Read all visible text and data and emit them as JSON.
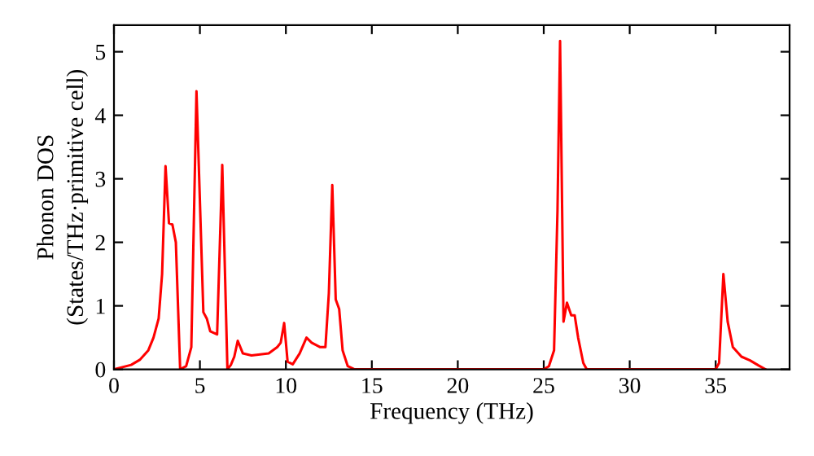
{
  "chart_data": {
    "type": "line",
    "xlabel": "Frequency (THz)",
    "ylabel": "Phonon DOS\n(States/THz·primitive cell)",
    "xlim": [
      0,
      39.3
    ],
    "ylim": [
      0,
      5.42
    ],
    "xticks": [
      0,
      5,
      10,
      15,
      20,
      25,
      30,
      35
    ],
    "yticks": [
      0,
      1,
      2,
      3,
      4,
      5
    ],
    "grid": false,
    "legend": false,
    "marker": "none",
    "line_style": "solid",
    "series": [
      {
        "color": "#ff0000",
        "x": [
          0,
          1,
          1.5,
          2,
          2.3,
          2.6,
          2.8,
          3.0,
          3.2,
          3.4,
          3.6,
          3.85,
          4.2,
          4.5,
          4.8,
          5.2,
          5.4,
          5.6,
          6.0,
          6.3,
          6.6,
          6.8,
          7.0,
          7.2,
          7.5,
          8,
          9,
          9.5,
          9.7,
          9.9,
          10.1,
          10.4,
          10.8,
          11.2,
          11.5,
          12,
          12.3,
          12.5,
          12.7,
          12.9,
          13.1,
          13.3,
          13.6,
          14,
          25.0,
          25.3,
          25.6,
          25.8,
          25.95,
          26.15,
          26.35,
          26.6,
          26.8,
          27.0,
          27.3,
          27.5,
          35.0,
          35.2,
          35.45,
          35.7,
          36,
          36.5,
          37,
          37.5,
          37.9
        ],
        "values": [
          0,
          0.07,
          0.15,
          0.3,
          0.5,
          0.8,
          1.5,
          3.2,
          2.3,
          2.28,
          2.0,
          0,
          0.05,
          0.35,
          4.38,
          0.9,
          0.8,
          0.6,
          0.55,
          3.22,
          0,
          0.07,
          0.2,
          0.45,
          0.25,
          0.22,
          0.25,
          0.35,
          0.42,
          0.73,
          0.12,
          0.08,
          0.25,
          0.5,
          0.42,
          0.35,
          0.35,
          1.2,
          2.9,
          1.1,
          0.95,
          0.3,
          0.05,
          0,
          0,
          0.05,
          0.3,
          2.5,
          5.17,
          0.75,
          1.05,
          0.85,
          0.85,
          0.5,
          0.1,
          0,
          0,
          0.1,
          1.5,
          0.75,
          0.35,
          0.2,
          0.14,
          0.06,
          0
        ]
      }
    ]
  }
}
